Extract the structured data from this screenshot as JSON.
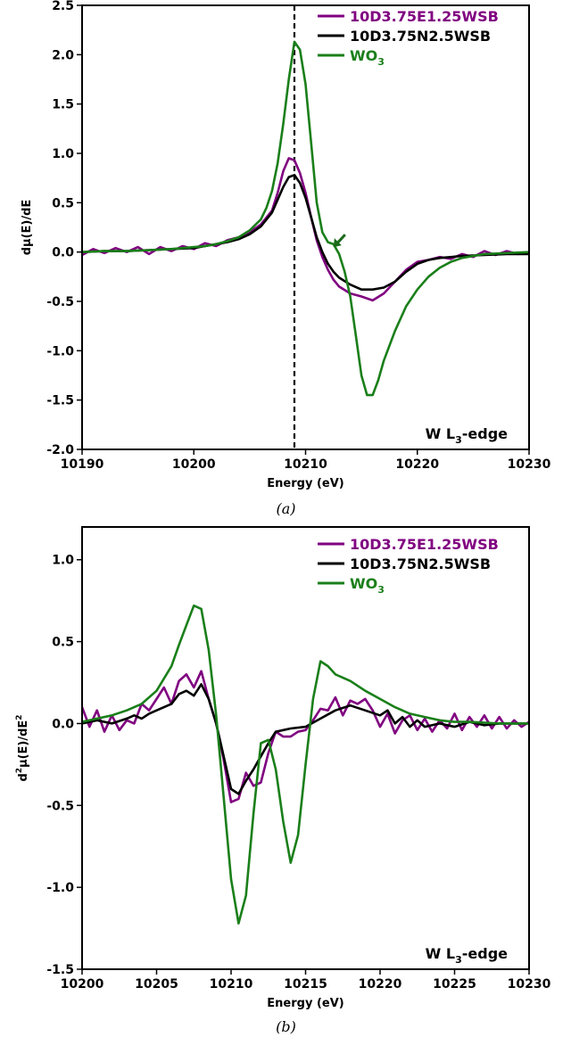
{
  "chart_data": [
    {
      "type": "line",
      "caption": "(a)",
      "xlabel": "Energy (eV)",
      "ylabel": "dμ(E)/dE",
      "xlim": [
        10190,
        10230
      ],
      "ylim": [
        -2.0,
        2.5
      ],
      "xticks": [
        10190,
        10200,
        10210,
        10220,
        10230
      ],
      "yticks": [
        -2.0,
        -1.5,
        -1.0,
        -0.5,
        0.0,
        0.5,
        1.0,
        1.5,
        2.0,
        2.5
      ],
      "ytick_labels": [
        "-2.0",
        "-1.5",
        "-1.0",
        "-0.5",
        "0.0",
        "0.5",
        "1.0",
        "1.5",
        "2.0",
        "2.5"
      ],
      "legend_position": "top-right",
      "annotation": {
        "main": "W L",
        "sub": "3",
        "rest": "-edge"
      },
      "vline": {
        "x": 10209,
        "style": "dashed",
        "color": "#000000"
      },
      "arrow": {
        "x": 10212.5,
        "y": 0.05,
        "color": "#1a6b1a"
      },
      "series": [
        {
          "name": "10D3.75E1.25WSB",
          "color": "#800080",
          "x": [
            10190,
            10191,
            10192,
            10193,
            10194,
            10195,
            10196,
            10197,
            10198,
            10199,
            10200,
            10201,
            10202,
            10203,
            10204,
            10205,
            10206,
            10207,
            10207.5,
            10208,
            10208.5,
            10209,
            10209.5,
            10210,
            10210.5,
            10211,
            10211.5,
            10212,
            10212.5,
            10213,
            10214,
            10215,
            10216,
            10217,
            10218,
            10219,
            10220,
            10221,
            10222,
            10223,
            10224,
            10225,
            10226,
            10227,
            10228,
            10229,
            10230
          ],
          "y": [
            -0.03,
            0.03,
            -0.01,
            0.04,
            0.0,
            0.05,
            -0.02,
            0.05,
            0.01,
            0.06,
            0.03,
            0.09,
            0.06,
            0.12,
            0.15,
            0.2,
            0.28,
            0.42,
            0.6,
            0.82,
            0.95,
            0.93,
            0.8,
            0.6,
            0.35,
            0.12,
            -0.05,
            -0.18,
            -0.28,
            -0.35,
            -0.42,
            -0.45,
            -0.49,
            -0.42,
            -0.3,
            -0.18,
            -0.1,
            -0.08,
            -0.05,
            -0.07,
            -0.02,
            -0.05,
            0.01,
            -0.03,
            0.01,
            -0.02,
            0.0
          ]
        },
        {
          "name": "10D3.75N2.5WSB",
          "color": "#000000",
          "x": [
            10190,
            10192,
            10194,
            10196,
            10198,
            10200,
            10201,
            10202,
            10203,
            10204,
            10205,
            10206,
            10207,
            10207.5,
            10208,
            10208.5,
            10209,
            10209.5,
            10210,
            10210.5,
            10211,
            10211.5,
            10212,
            10212.5,
            10213,
            10214,
            10215,
            10216,
            10217,
            10218,
            10219,
            10220,
            10221,
            10222,
            10224,
            10226,
            10228,
            10230
          ],
          "y": [
            0.0,
            0.01,
            0.01,
            0.02,
            0.03,
            0.04,
            0.06,
            0.08,
            0.1,
            0.13,
            0.18,
            0.26,
            0.4,
            0.53,
            0.66,
            0.76,
            0.78,
            0.7,
            0.55,
            0.35,
            0.15,
            0.0,
            -0.12,
            -0.2,
            -0.26,
            -0.33,
            -0.38,
            -0.38,
            -0.36,
            -0.3,
            -0.2,
            -0.12,
            -0.08,
            -0.06,
            -0.04,
            -0.03,
            -0.02,
            -0.02
          ]
        },
        {
          "name": "WO",
          "name_sub": "3",
          "color": "#1a7f1a",
          "x": [
            10190,
            10192,
            10194,
            10196,
            10198,
            10200,
            10201,
            10202,
            10203,
            10204,
            10205,
            10206,
            10206.5,
            10207,
            10207.5,
            10208,
            10208.5,
            10209,
            10209.5,
            10210,
            10210.5,
            10211,
            10211.5,
            10212,
            10212.5,
            10213,
            10213.5,
            10214,
            10214.5,
            10215,
            10215.5,
            10216,
            10216.5,
            10217,
            10218,
            10219,
            10220,
            10221,
            10222,
            10223,
            10224,
            10225,
            10226,
            10228,
            10230
          ],
          "y": [
            0.0,
            0.01,
            0.01,
            0.02,
            0.03,
            0.05,
            0.06,
            0.08,
            0.11,
            0.15,
            0.22,
            0.33,
            0.45,
            0.62,
            0.9,
            1.3,
            1.75,
            2.13,
            2.05,
            1.7,
            1.1,
            0.5,
            0.2,
            0.1,
            0.08,
            -0.02,
            -0.2,
            -0.45,
            -0.85,
            -1.25,
            -1.45,
            -1.45,
            -1.3,
            -1.1,
            -0.8,
            -0.55,
            -0.38,
            -0.25,
            -0.16,
            -0.1,
            -0.06,
            -0.04,
            -0.02,
            -0.01,
            0.0
          ]
        }
      ]
    },
    {
      "type": "line",
      "caption": "(b)",
      "xlabel": "Energy (eV)",
      "ylabel": {
        "pre": "d",
        "sup1": "2",
        "mid": "μ(E)/dE",
        "sup2": "2"
      },
      "xlim": [
        10200,
        10230
      ],
      "ylim": [
        -1.5,
        1.2
      ],
      "xticks": [
        10200,
        10205,
        10210,
        10215,
        10220,
        10225,
        10230
      ],
      "yticks": [
        -1.5,
        -1.0,
        -0.5,
        0.0,
        0.5,
        1.0
      ],
      "ytick_labels": [
        "-1.5",
        "-1.0",
        "-0.5",
        "0.0",
        "0.5",
        "1.0"
      ],
      "legend_position": "top-right",
      "annotation": {
        "main": "W L",
        "sub": "3",
        "rest": "-edge"
      },
      "series": [
        {
          "name": "10D3.75E1.25WSB",
          "color": "#800080",
          "x": [
            10200,
            10200.5,
            10201,
            10201.5,
            10202,
            10202.5,
            10203,
            10203.5,
            10204,
            10204.5,
            10205,
            10205.5,
            10206,
            10206.5,
            10207,
            10207.5,
            10208,
            10208.5,
            10209,
            10209.5,
            10210,
            10210.5,
            10211,
            10211.5,
            10212,
            10212.5,
            10213,
            10213.5,
            10214,
            10214.5,
            10215,
            10215.5,
            10216,
            10216.5,
            10217,
            10217.5,
            10218,
            10218.5,
            10219,
            10219.5,
            10220,
            10220.5,
            10221,
            10221.5,
            10222,
            10222.5,
            10223,
            10223.5,
            10224,
            10224.5,
            10225,
            10225.5,
            10226,
            10226.5,
            10227,
            10227.5,
            10228,
            10228.5,
            10229,
            10229.5,
            10230
          ],
          "y": [
            0.1,
            -0.02,
            0.08,
            -0.05,
            0.05,
            -0.04,
            0.02,
            0.0,
            0.12,
            0.08,
            0.15,
            0.22,
            0.12,
            0.26,
            0.3,
            0.22,
            0.32,
            0.15,
            0.0,
            -0.22,
            -0.48,
            -0.46,
            -0.3,
            -0.38,
            -0.36,
            -0.18,
            -0.05,
            -0.08,
            -0.08,
            -0.05,
            -0.04,
            0.02,
            0.09,
            0.08,
            0.16,
            0.05,
            0.14,
            0.12,
            0.15,
            0.08,
            -0.02,
            0.06,
            -0.06,
            0.02,
            0.05,
            -0.04,
            0.03,
            -0.05,
            0.02,
            -0.03,
            0.06,
            -0.04,
            0.04,
            -0.02,
            0.05,
            -0.03,
            0.04,
            -0.03,
            0.02,
            -0.02,
            0.01
          ]
        },
        {
          "name": "10D3.75N2.5WSB",
          "color": "#000000",
          "x": [
            10200,
            10201,
            10202,
            10203,
            10203.5,
            10204,
            10204.5,
            10205,
            10206,
            10206.5,
            10207,
            10207.5,
            10208,
            10208.5,
            10209,
            10209.5,
            10210,
            10210.5,
            10211,
            10211.5,
            10212,
            10212.5,
            10213,
            10213.5,
            10214,
            10215,
            10216,
            10217,
            10218,
            10219,
            10220,
            10220.5,
            10221,
            10221.5,
            10222,
            10222.5,
            10223,
            10224,
            10225,
            10226,
            10227,
            10228,
            10229,
            10230
          ],
          "y": [
            0.0,
            0.02,
            0.0,
            0.03,
            0.05,
            0.03,
            0.06,
            0.08,
            0.12,
            0.18,
            0.2,
            0.17,
            0.24,
            0.15,
            0.0,
            -0.2,
            -0.4,
            -0.43,
            -0.35,
            -0.28,
            -0.2,
            -0.12,
            -0.05,
            -0.04,
            -0.03,
            -0.02,
            0.03,
            0.08,
            0.11,
            0.08,
            0.05,
            0.08,
            0.0,
            0.04,
            -0.02,
            0.02,
            -0.02,
            0.0,
            -0.02,
            0.01,
            -0.01,
            0.0,
            0.0,
            0.0
          ]
        },
        {
          "name": "WO",
          "name_sub": "3",
          "color": "#1a7f1a",
          "x": [
            10200,
            10201,
            10202,
            10203,
            10204,
            10205,
            10206,
            10206.5,
            10207,
            10207.5,
            10208,
            10208.5,
            10209,
            10209.5,
            10210,
            10210.5,
            10211,
            10211.5,
            10212,
            10212.5,
            10213,
            10213.5,
            10214,
            10214.5,
            10215,
            10215.5,
            10216,
            10216.5,
            10217,
            10218,
            10219,
            10220,
            10221,
            10222,
            10223,
            10224,
            10225,
            10226,
            10228,
            10230
          ],
          "y": [
            0.01,
            0.03,
            0.05,
            0.08,
            0.12,
            0.2,
            0.35,
            0.48,
            0.6,
            0.72,
            0.7,
            0.45,
            0.05,
            -0.45,
            -0.95,
            -1.22,
            -1.05,
            -0.55,
            -0.12,
            -0.1,
            -0.28,
            -0.6,
            -0.85,
            -0.68,
            -0.25,
            0.15,
            0.38,
            0.35,
            0.3,
            0.26,
            0.2,
            0.15,
            0.1,
            0.06,
            0.04,
            0.02,
            0.01,
            0.01,
            0.0,
            0.0
          ]
        }
      ]
    }
  ]
}
